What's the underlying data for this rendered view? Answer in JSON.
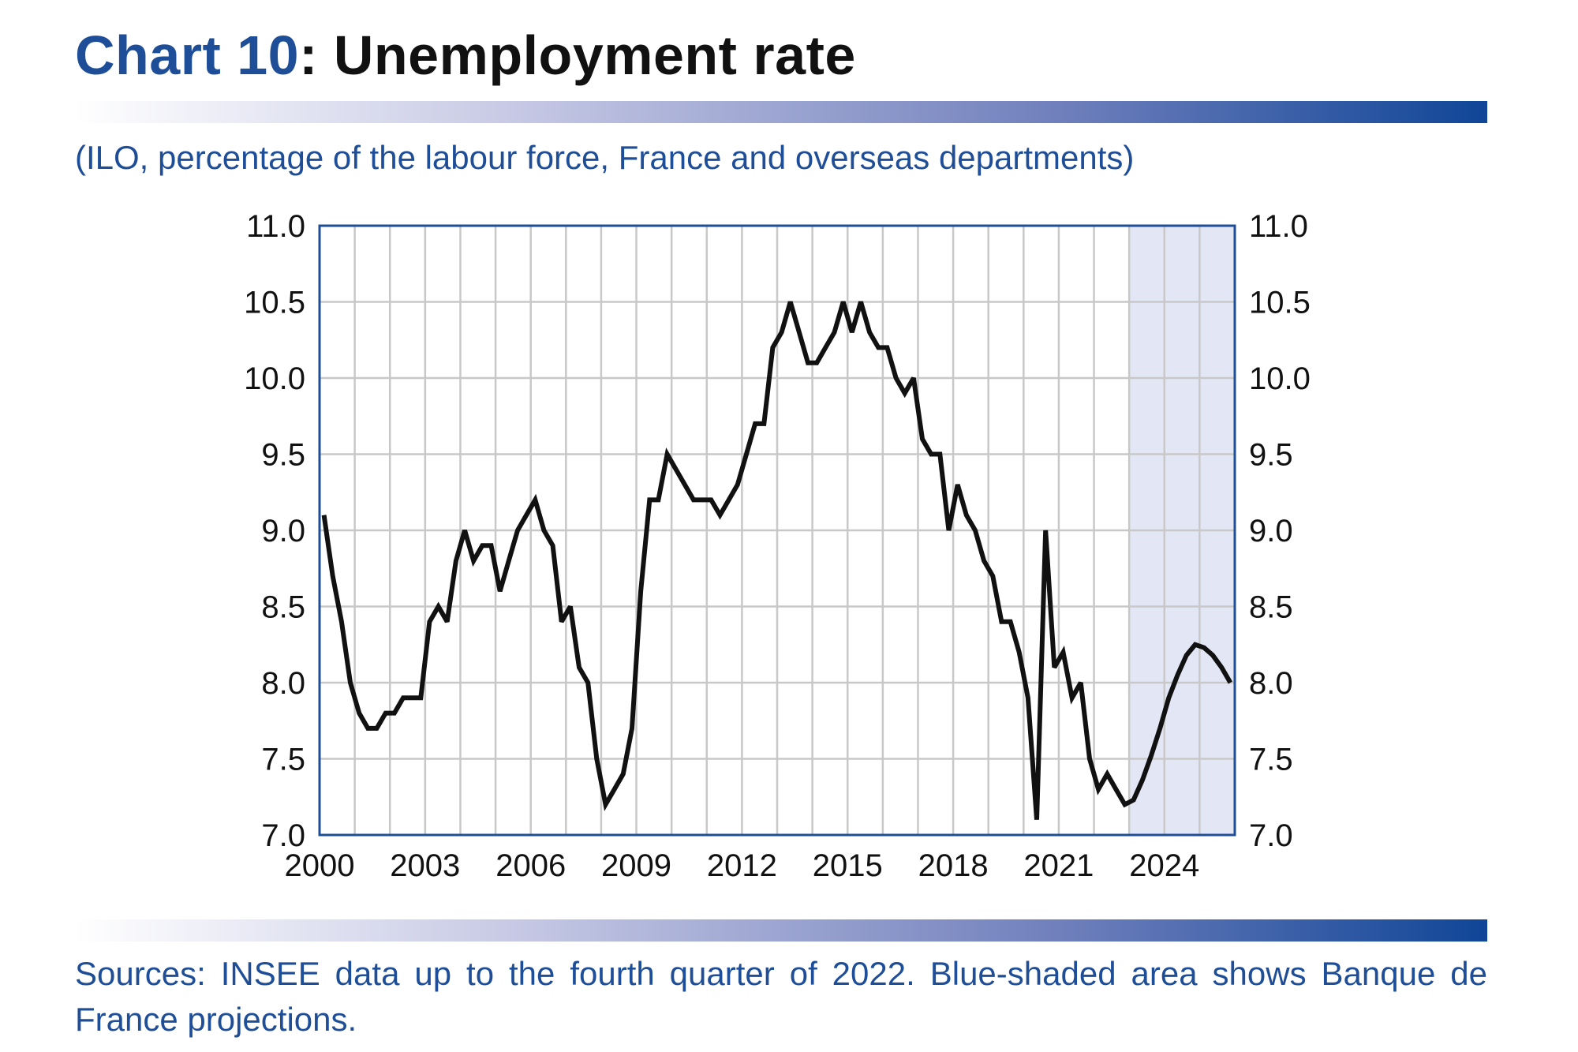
{
  "header": {
    "title_number": "Chart 10",
    "title_rest": ": Unemployment rate",
    "subtitle": "(ILO, percentage of the labour force, France and overseas departments)"
  },
  "footer": {
    "sources": "Sources: INSEE data up to the fourth quarter of 2022. Blue-shaded area shows Banque de France projections."
  },
  "colors": {
    "accent": "#1f4e99",
    "line": "#111111",
    "shade": "#e3e6f5",
    "grid": "#c8c8c8",
    "frame": "#1f4e99"
  },
  "chart_data": {
    "type": "line",
    "title": "Chart 10: Unemployment rate",
    "subtitle": "(ILO, percentage of the labour force, France and overseas departments)",
    "xlabel": "",
    "ylabel": "",
    "x_tick_labels": [
      "2000",
      "2003",
      "2006",
      "2009",
      "2012",
      "2015",
      "2018",
      "2021",
      "2024"
    ],
    "y_ticks": [
      "7.0",
      "7.5",
      "8.0",
      "8.5",
      "9.0",
      "9.5",
      "10.0",
      "10.5",
      "11.0"
    ],
    "ylim": [
      7.0,
      11.0
    ],
    "xlim": [
      "2000-Q1",
      "2025-Q4"
    ],
    "grid": true,
    "right_axis": true,
    "projection_shade": {
      "from": "2023-Q1",
      "to": "2025-Q4"
    },
    "series": [
      {
        "x": [
          "2000-Q1",
          "2000-Q2",
          "2000-Q3",
          "2000-Q4",
          "2001-Q1",
          "2001-Q2",
          "2001-Q3",
          "2001-Q4",
          "2002-Q1",
          "2002-Q2",
          "2002-Q3",
          "2002-Q4",
          "2003-Q1",
          "2003-Q2",
          "2003-Q3",
          "2003-Q4",
          "2004-Q1",
          "2004-Q2",
          "2004-Q3",
          "2004-Q4",
          "2005-Q1",
          "2005-Q2",
          "2005-Q3",
          "2005-Q4",
          "2006-Q1",
          "2006-Q2",
          "2006-Q3",
          "2006-Q4",
          "2007-Q1",
          "2007-Q2",
          "2007-Q3",
          "2007-Q4",
          "2008-Q1",
          "2008-Q2",
          "2008-Q3",
          "2008-Q4",
          "2009-Q1",
          "2009-Q2",
          "2009-Q3",
          "2009-Q4",
          "2010-Q1",
          "2010-Q2",
          "2010-Q3",
          "2010-Q4",
          "2011-Q1",
          "2011-Q2",
          "2011-Q3",
          "2011-Q4",
          "2012-Q1",
          "2012-Q2",
          "2012-Q3",
          "2012-Q4",
          "2013-Q1",
          "2013-Q2",
          "2013-Q3",
          "2013-Q4",
          "2014-Q1",
          "2014-Q2",
          "2014-Q3",
          "2014-Q4",
          "2015-Q1",
          "2015-Q2",
          "2015-Q3",
          "2015-Q4",
          "2016-Q1",
          "2016-Q2",
          "2016-Q3",
          "2016-Q4",
          "2017-Q1",
          "2017-Q2",
          "2017-Q3",
          "2017-Q4",
          "2018-Q1",
          "2018-Q2",
          "2018-Q3",
          "2018-Q4",
          "2019-Q1",
          "2019-Q2",
          "2019-Q3",
          "2019-Q4",
          "2020-Q1",
          "2020-Q2",
          "2020-Q3",
          "2020-Q4",
          "2021-Q1",
          "2021-Q2",
          "2021-Q3",
          "2021-Q4",
          "2022-Q1",
          "2022-Q2",
          "2022-Q3",
          "2022-Q4",
          "2023-Q1",
          "2023-Q2",
          "2023-Q3",
          "2023-Q4",
          "2024-Q1",
          "2024-Q2",
          "2024-Q3",
          "2024-Q4",
          "2025-Q1",
          "2025-Q2",
          "2025-Q3",
          "2025-Q4"
        ],
        "values": [
          9.1,
          8.7,
          8.4,
          8.0,
          7.8,
          7.7,
          7.7,
          7.8,
          7.8,
          7.9,
          7.9,
          7.9,
          8.4,
          8.5,
          8.4,
          8.8,
          9.0,
          8.8,
          8.9,
          8.9,
          8.6,
          8.8,
          9.0,
          9.1,
          9.2,
          9.0,
          8.9,
          8.4,
          8.5,
          8.1,
          8.0,
          7.5,
          7.2,
          7.3,
          7.4,
          7.7,
          8.6,
          9.2,
          9.2,
          9.5,
          9.4,
          9.3,
          9.2,
          9.2,
          9.2,
          9.1,
          9.2,
          9.3,
          9.5,
          9.7,
          9.7,
          10.2,
          10.3,
          10.5,
          10.3,
          10.1,
          10.1,
          10.2,
          10.3,
          10.5,
          10.3,
          10.5,
          10.3,
          10.2,
          10.2,
          10.0,
          9.9,
          10.0,
          9.6,
          9.5,
          9.5,
          9.0,
          9.3,
          9.1,
          9.0,
          8.8,
          8.7,
          8.4,
          8.4,
          8.2,
          7.9,
          7.1,
          9.0,
          8.1,
          8.2,
          7.9,
          8.0,
          7.5,
          7.3,
          7.4,
          7.3,
          7.2,
          7.23,
          7.36,
          7.52,
          7.7,
          7.9,
          8.05,
          8.18,
          8.25,
          8.23,
          8.18,
          8.1,
          8.0
        ]
      }
    ]
  }
}
